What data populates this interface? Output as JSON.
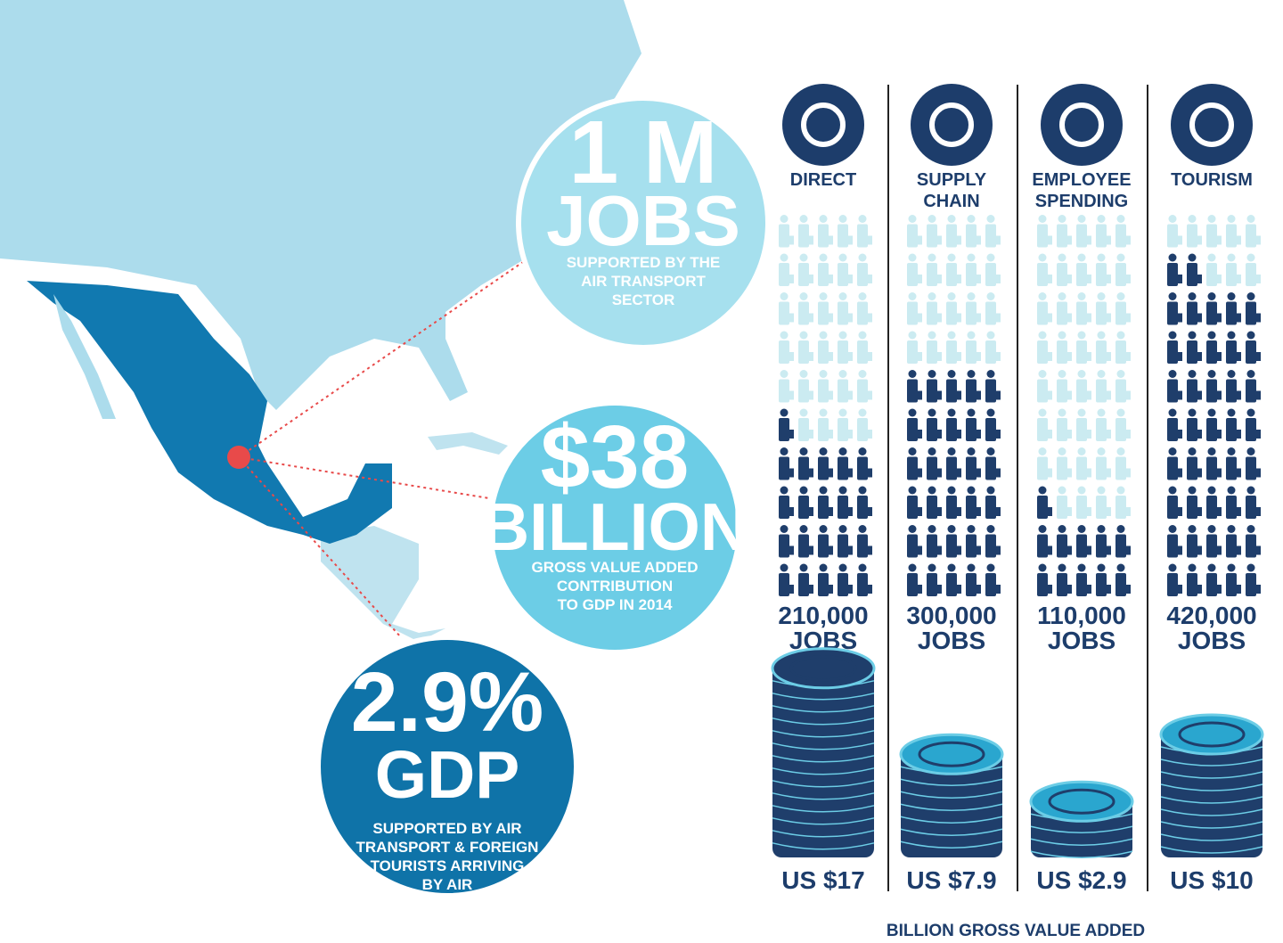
{
  "callouts": [
    {
      "big": "1 M",
      "unit": "JOBS",
      "caption": [
        "SUPPORTED BY THE",
        "AIR TRANSPORT",
        "SECTOR"
      ]
    },
    {
      "big": "$38",
      "unit": "BILLION",
      "caption": [
        "GROSS VALUE ADDED",
        "CONTRIBUTION",
        "TO GDP IN 2014"
      ]
    },
    {
      "big": "2.9%",
      "unit": "GDP",
      "caption": [
        "SUPPORTED BY AIR",
        "TRANSPORT & FOREIGN",
        "TOURISTS ARRIVING",
        "BY AIR"
      ]
    }
  ],
  "columns": [
    {
      "label": [
        "DIRECT"
      ],
      "jobs": {
        "value": 210000,
        "label": "210,000"
      },
      "unit": "JOBS",
      "gva": {
        "value": 17,
        "label": "US $17"
      }
    },
    {
      "label": [
        "SUPPLY",
        "CHAIN"
      ],
      "jobs": {
        "value": 300000,
        "label": "300,000"
      },
      "unit": "JOBS",
      "gva": {
        "value": 7.9,
        "label": "US $7.9"
      }
    },
    {
      "label": [
        "EMPLOYEE",
        "SPENDING"
      ],
      "jobs": {
        "value": 110000,
        "label": "110,000"
      },
      "unit": "JOBS",
      "gva": {
        "value": 2.9,
        "label": "US $2.9"
      }
    },
    {
      "label": [
        "TOURISM"
      ],
      "jobs": {
        "value": 420000,
        "label": "420,000"
      },
      "unit": "JOBS",
      "gva": {
        "value": 10,
        "label": "US $10"
      }
    }
  ],
  "footer": "BILLION GROSS VALUE ADDED"
}
